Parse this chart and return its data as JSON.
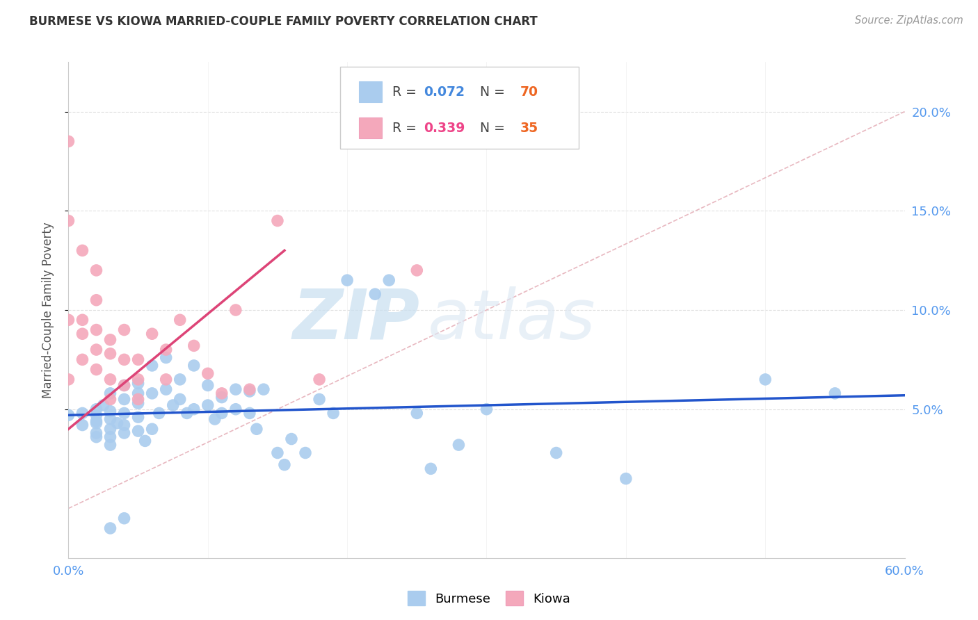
{
  "title": "BURMESE VS KIOWA MARRIED-COUPLE FAMILY POVERTY CORRELATION CHART",
  "source": "Source: ZipAtlas.com",
  "ylabel": "Married-Couple Family Poverty",
  "xlim": [
    0.0,
    0.6
  ],
  "ylim": [
    -0.025,
    0.225
  ],
  "yticks": [
    0.05,
    0.1,
    0.15,
    0.2
  ],
  "yticklabels": [
    "5.0%",
    "10.0%",
    "15.0%",
    "20.0%"
  ],
  "burmese_color": "#aaccee",
  "kiowa_color": "#f4a8bb",
  "burmese_line_color": "#2255cc",
  "kiowa_line_color": "#dd4477",
  "ref_line_color": "#e8b8c0",
  "r_color_burmese": "#4488dd",
  "n_color_burmese": "#ee6622",
  "r_color_kiowa": "#ee4488",
  "n_color_kiowa": "#ee6622",
  "legend_r_burmese": "0.072",
  "legend_n_burmese": "70",
  "legend_r_kiowa": "0.339",
  "legend_n_kiowa": "35",
  "watermark_zip": "ZIP",
  "watermark_atlas": "atlas",
  "burmese_points_x": [
    0.0,
    0.01,
    0.01,
    0.02,
    0.02,
    0.02,
    0.02,
    0.02,
    0.02,
    0.025,
    0.03,
    0.03,
    0.03,
    0.03,
    0.03,
    0.03,
    0.035,
    0.04,
    0.04,
    0.04,
    0.04,
    0.04,
    0.05,
    0.05,
    0.05,
    0.05,
    0.05,
    0.055,
    0.06,
    0.06,
    0.065,
    0.07,
    0.07,
    0.075,
    0.08,
    0.08,
    0.085,
    0.09,
    0.09,
    0.1,
    0.1,
    0.105,
    0.11,
    0.11,
    0.12,
    0.12,
    0.13,
    0.13,
    0.135,
    0.14,
    0.15,
    0.155,
    0.16,
    0.17,
    0.18,
    0.19,
    0.2,
    0.22,
    0.23,
    0.25,
    0.26,
    0.28,
    0.3,
    0.35,
    0.4,
    0.5,
    0.55,
    0.06,
    0.04,
    0.03
  ],
  "burmese_points_y": [
    0.047,
    0.048,
    0.042,
    0.05,
    0.044,
    0.038,
    0.036,
    0.043,
    0.047,
    0.052,
    0.058,
    0.049,
    0.045,
    0.04,
    0.036,
    0.032,
    0.043,
    0.062,
    0.055,
    0.048,
    0.042,
    0.038,
    0.063,
    0.058,
    0.053,
    0.046,
    0.039,
    0.034,
    0.072,
    0.058,
    0.048,
    0.076,
    0.06,
    0.052,
    0.065,
    0.055,
    0.048,
    0.072,
    0.05,
    0.062,
    0.052,
    0.045,
    0.056,
    0.048,
    0.06,
    0.05,
    0.059,
    0.048,
    0.04,
    0.06,
    0.028,
    0.022,
    0.035,
    0.028,
    0.055,
    0.048,
    0.115,
    0.108,
    0.115,
    0.048,
    0.02,
    0.032,
    0.05,
    0.028,
    0.015,
    0.065,
    0.058,
    0.04,
    -0.005,
    -0.01
  ],
  "kiowa_points_x": [
    0.0,
    0.0,
    0.0,
    0.0,
    0.01,
    0.01,
    0.01,
    0.01,
    0.02,
    0.02,
    0.02,
    0.02,
    0.02,
    0.03,
    0.03,
    0.03,
    0.03,
    0.04,
    0.04,
    0.04,
    0.05,
    0.05,
    0.05,
    0.06,
    0.07,
    0.07,
    0.08,
    0.09,
    0.1,
    0.11,
    0.12,
    0.13,
    0.15,
    0.18,
    0.25
  ],
  "kiowa_points_y": [
    0.185,
    0.145,
    0.095,
    0.065,
    0.13,
    0.095,
    0.088,
    0.075,
    0.12,
    0.105,
    0.09,
    0.08,
    0.07,
    0.085,
    0.078,
    0.065,
    0.055,
    0.09,
    0.075,
    0.062,
    0.075,
    0.065,
    0.055,
    0.088,
    0.08,
    0.065,
    0.095,
    0.082,
    0.068,
    0.058,
    0.1,
    0.06,
    0.145,
    0.065,
    0.12
  ],
  "burmese_trend_x": [
    0.0,
    0.6
  ],
  "burmese_trend_y": [
    0.047,
    0.057
  ],
  "kiowa_trend_x": [
    0.0,
    0.155
  ],
  "kiowa_trend_y": [
    0.04,
    0.13
  ],
  "ref_line_x": [
    0.0,
    0.6
  ],
  "ref_line_y": [
    0.0,
    0.2
  ]
}
